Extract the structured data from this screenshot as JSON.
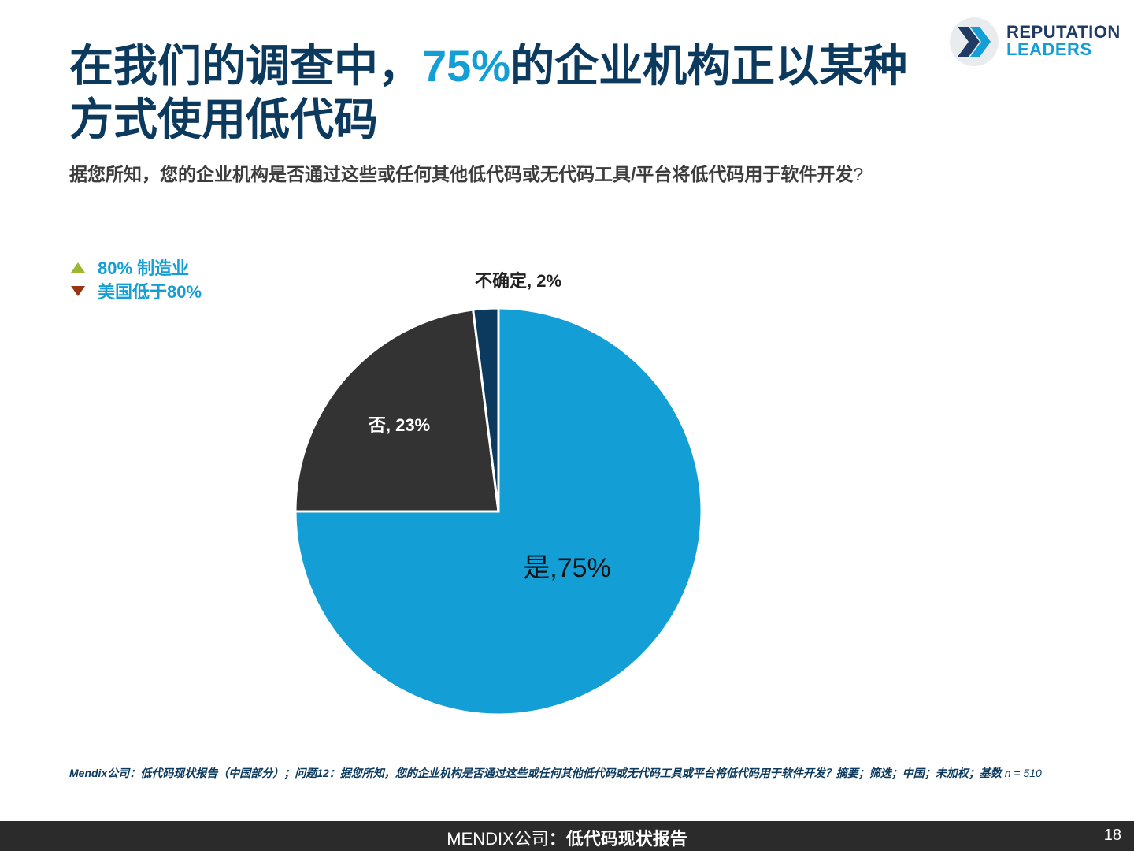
{
  "title": {
    "before": "在我们的调查中，",
    "highlight": "75%",
    "after": "的企业机构正以某种方式使用低代码"
  },
  "subtitle": {
    "text": "据您所知，您的企业机构是否通过这些或任何其他低代码或无代码工具/平台将低代码用于软件开发",
    "qmark": "?"
  },
  "logo": {
    "line1": "REPUTATION",
    "line2": "LEADERS"
  },
  "legend": {
    "items": [
      {
        "label": "80% 制造业",
        "icon": "triangle-up-icon",
        "color": "#9ab832"
      },
      {
        "label": "美国低于80%",
        "icon": "triangle-down-icon",
        "color": "#9a3412"
      }
    ]
  },
  "chart_data": {
    "type": "pie",
    "title": "",
    "slices": [
      {
        "label": "是,75%",
        "value": 75,
        "color": "#139fd6"
      },
      {
        "label": "否, 23%",
        "value": 23,
        "color": "#333333"
      },
      {
        "label": "不确定, 2%",
        "value": 2,
        "color": "#0b3a5e"
      }
    ]
  },
  "source": {
    "text": "Mendix公司：低代码现状报告（中国部分）；问题12：据您所知，您的企业机构是否通过这些或任何其他低代码或无代码工具或平台将低代码用于软件开发？摘要；筛选；中国；未加权；基数 ",
    "base": "n = 510"
  },
  "footer": {
    "brand": "MENDIX公司",
    "report": "：低代码现状报告",
    "page": "18"
  },
  "colors": {
    "title": "#0b3a5e",
    "accent": "#139fd6",
    "footer_bg": "#2b2b2b"
  }
}
